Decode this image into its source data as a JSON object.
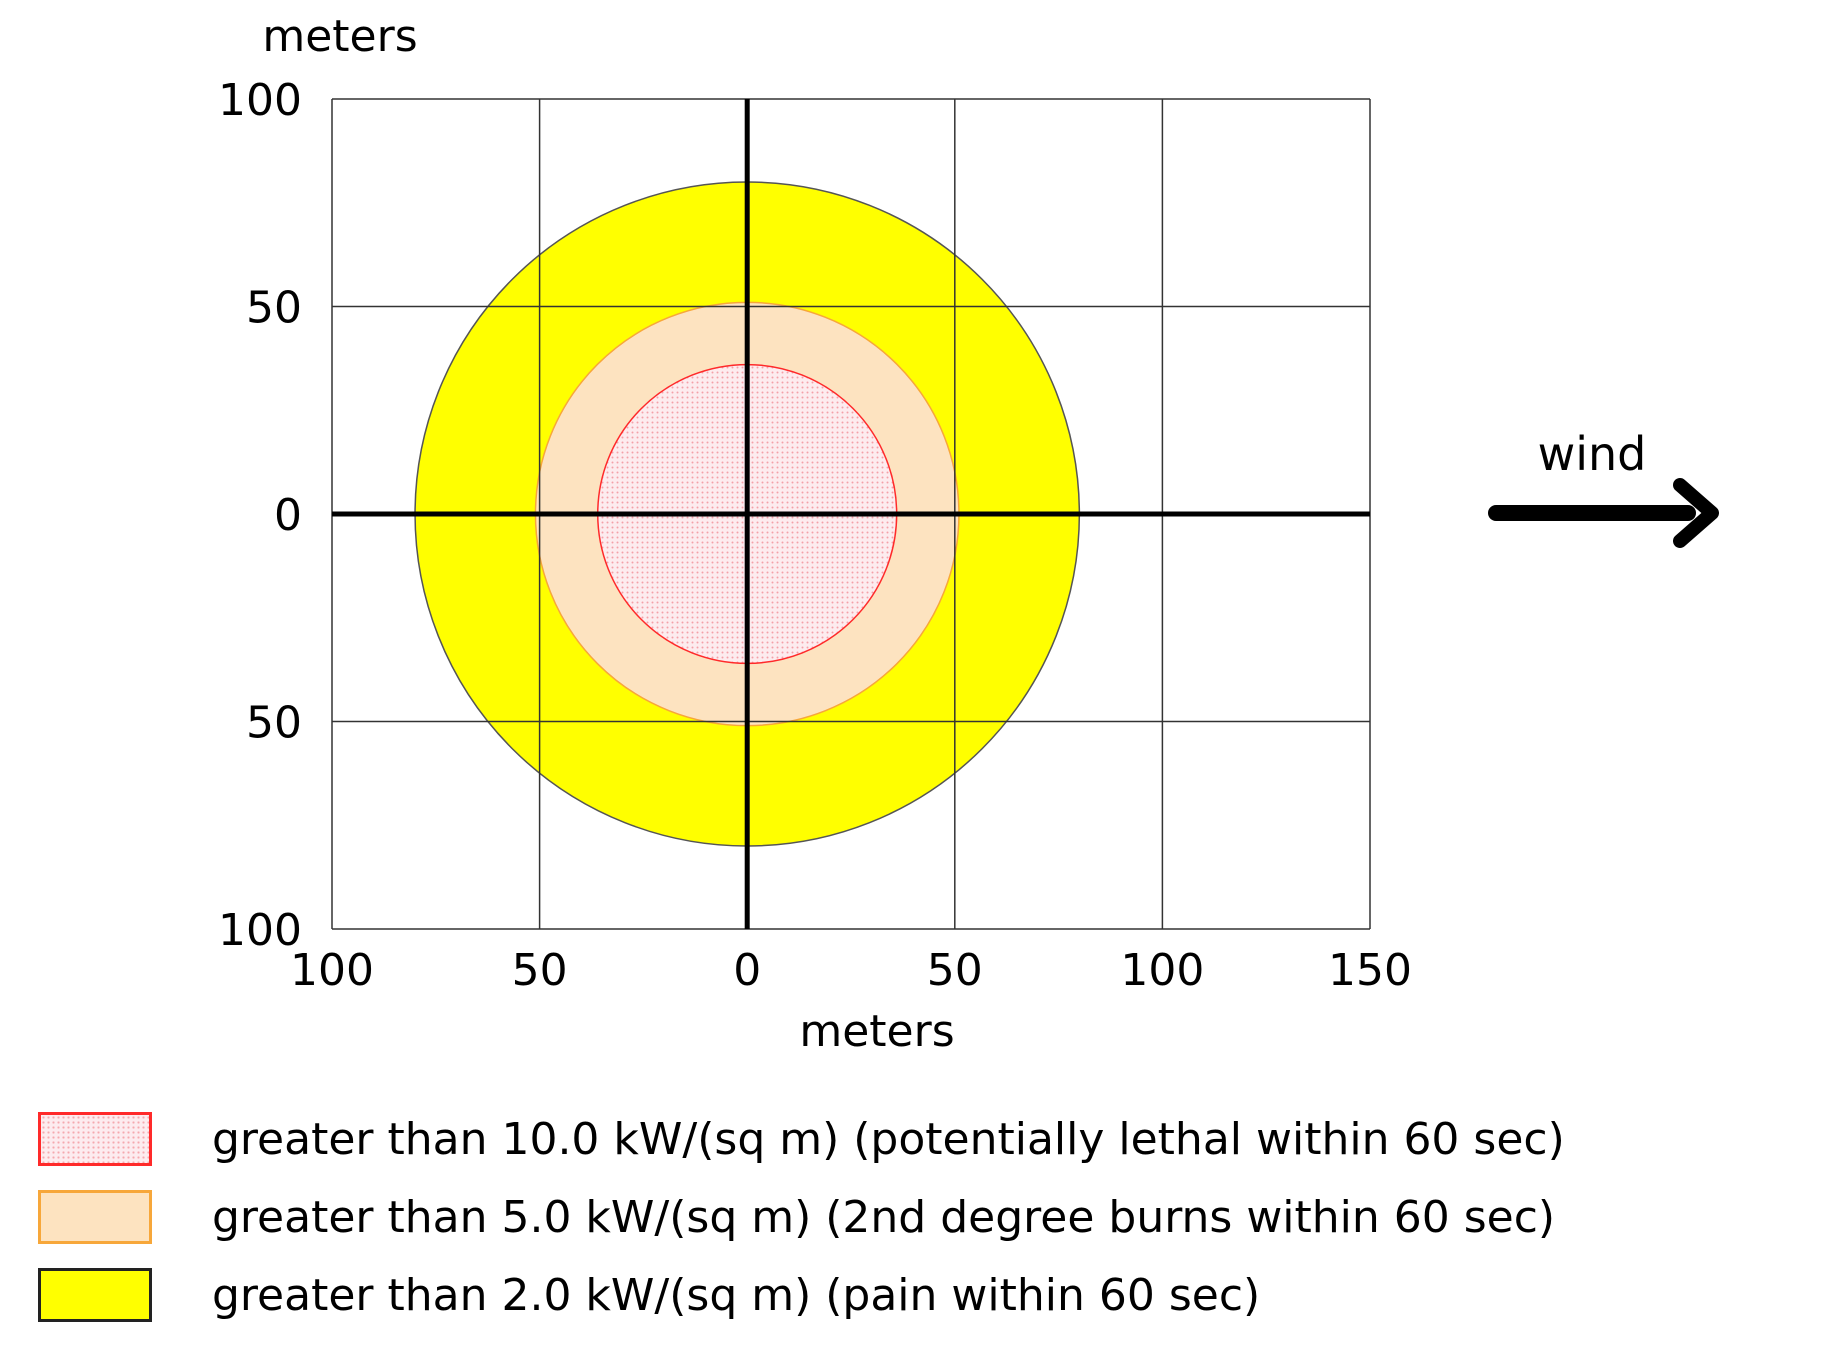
{
  "chart_data": {
    "type": "contour",
    "xlabel": "meters",
    "ylabel": "meters",
    "xlim": [
      -100,
      150
    ],
    "ylim": [
      -100,
      100
    ],
    "x_ticks": [
      -100,
      -50,
      0,
      50,
      100,
      150
    ],
    "x_tick_labels": [
      "100",
      "50",
      "0",
      "50",
      "100",
      "150"
    ],
    "y_ticks": [
      100,
      50,
      0,
      -50,
      -100
    ],
    "y_tick_labels": [
      "100",
      "50",
      "0",
      "50",
      "100"
    ],
    "grid": true,
    "annotation": "wind",
    "zones": [
      {
        "label": "greater than 2.0 kW/(sq m) (pain within 60 sec)",
        "radius": 80,
        "center": [
          0,
          0
        ],
        "fill": "#ffff00",
        "stroke": "#555555",
        "pattern": false
      },
      {
        "label": "greater than 5.0 kW/(sq m) (2nd degree burns within 60 sec)",
        "radius": 51,
        "center": [
          0,
          0
        ],
        "fill": "#fde3c0",
        "stroke": "#f7a73a",
        "pattern": false
      },
      {
        "label": "greater than 10.0 kW/(sq m) (potentially lethal within 60 sec)",
        "radius": 36,
        "center": [
          0,
          0
        ],
        "fill": "#fdecef",
        "stroke": "#ff2a2a",
        "pattern": true
      }
    ]
  },
  "legend": [
    {
      "label": "greater than 10.0 kW/(sq m) (potentially lethal within 60 sec)",
      "fill": "#fdecef",
      "stroke": "#ff2a2a",
      "pattern": true
    },
    {
      "label": "greater than 5.0 kW/(sq m) (2nd degree burns within 60 sec)",
      "fill": "#fde3c0",
      "stroke": "#f7a73a",
      "pattern": false
    },
    {
      "label": "greater than 2.0 kW/(sq m) (pain within 60 sec)",
      "fill": "#ffff00",
      "stroke": "#222222",
      "pattern": false
    }
  ]
}
